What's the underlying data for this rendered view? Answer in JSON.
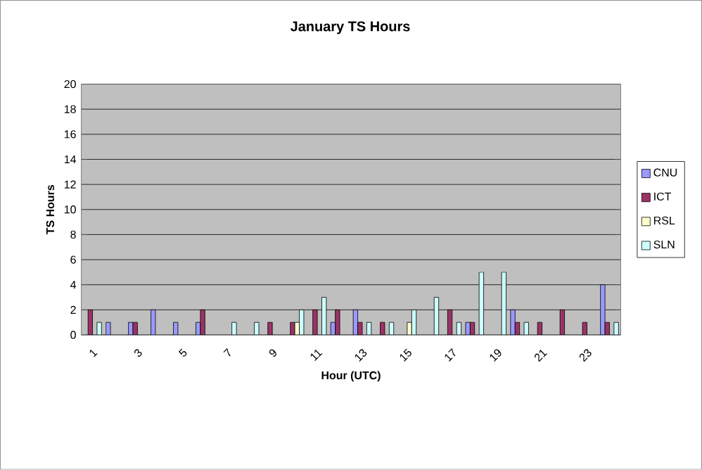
{
  "chart_data": {
    "type": "bar",
    "title": "January TS Hours",
    "xlabel": "Hour (UTC)",
    "ylabel": "TS Hours",
    "categories": [
      "1",
      null,
      "3",
      null,
      "5",
      null,
      "7",
      null,
      "9",
      null,
      "11",
      null,
      "13",
      null,
      "15",
      null,
      "17",
      null,
      "19",
      null,
      "21",
      null,
      "23",
      null
    ],
    "series": [
      {
        "name": "CNU",
        "color": "#9999ff",
        "values": [
          0,
          1,
          1,
          2,
          1,
          1,
          0,
          0,
          0,
          0,
          0,
          1,
          2,
          0,
          0,
          0,
          0,
          1,
          0,
          2,
          0,
          0,
          0,
          4
        ]
      },
      {
        "name": "ICT",
        "color": "#993366",
        "values": [
          2,
          0,
          1,
          0,
          0,
          2,
          0,
          0,
          1,
          1,
          2,
          2,
          1,
          1,
          0,
          0,
          2,
          1,
          0,
          1,
          1,
          2,
          1,
          1
        ]
      },
      {
        "name": "RSL",
        "color": "#ffffcc",
        "values": [
          0,
          0,
          0,
          0,
          0,
          0,
          0,
          0,
          0,
          1,
          0,
          0,
          0,
          0,
          1,
          0,
          0,
          0,
          0,
          0,
          0,
          0,
          0,
          0
        ]
      },
      {
        "name": "SLN",
        "color": "#ccffff",
        "values": [
          1,
          0,
          0,
          0,
          0,
          0,
          1,
          1,
          0,
          2,
          3,
          0,
          1,
          1,
          2,
          3,
          1,
          5,
          5,
          1,
          0,
          0,
          0,
          1
        ]
      }
    ],
    "ylim": [
      0,
      20
    ],
    "yticks": [
      0,
      2,
      4,
      6,
      8,
      10,
      12,
      14,
      16,
      18,
      20
    ],
    "grid": "y",
    "legend": "right"
  }
}
